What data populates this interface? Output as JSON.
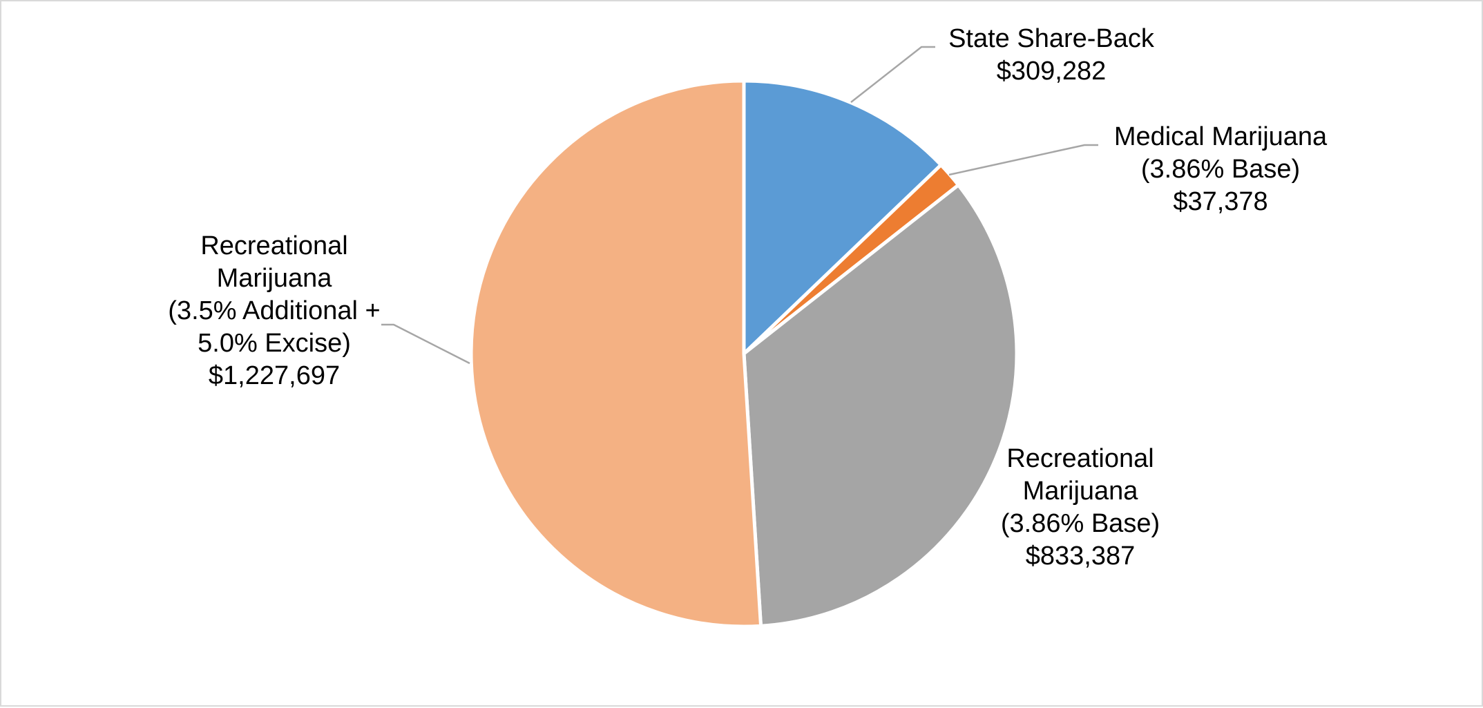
{
  "chart_data": {
    "type": "pie",
    "title": "",
    "start_angle_deg": 0,
    "direction": "clockwise",
    "legend": "none",
    "slices": [
      {
        "key": "state-share-back",
        "name": "State Share-Back",
        "label_lines": [
          "State Share-Back",
          "$309,282"
        ],
        "value": 309282,
        "color": "#5b9bd5"
      },
      {
        "key": "medical-marijuana",
        "name": "Medical Marijuana (3.86% Base)",
        "label_lines": [
          "Medical Marijuana",
          "(3.86% Base)",
          "$37,378"
        ],
        "value": 37378,
        "color": "#ed7d31"
      },
      {
        "key": "recreational-base",
        "name": "Recreational Marijuana (3.86% Base)",
        "label_lines": [
          "Recreational",
          "Marijuana",
          "(3.86% Base)",
          "$833,387"
        ],
        "value": 833387,
        "color": "#a5a5a5"
      },
      {
        "key": "recreational-additional-excise",
        "name": "Recreational Marijuana (3.5% Additional + 5.0% Excise)",
        "label_lines": [
          "Recreational",
          "Marijuana",
          "(3.5% Additional +",
          "5.0% Excise)",
          "$1,227,697"
        ],
        "value": 1227697,
        "color": "#f4b183"
      }
    ]
  }
}
